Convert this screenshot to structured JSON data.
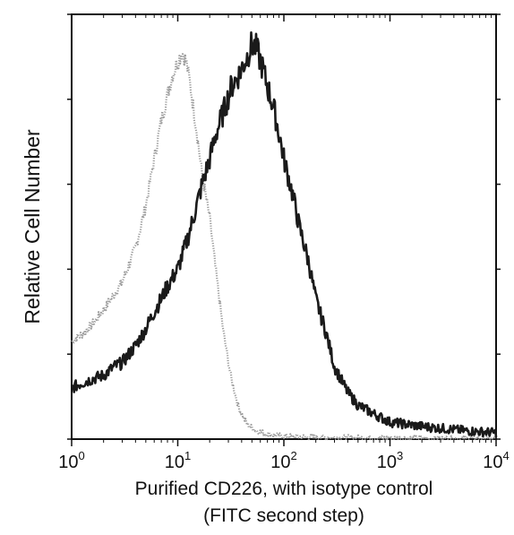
{
  "chart_data": {
    "type": "line",
    "title": "",
    "xlabel": "Purified CD226, with isotype control",
    "xlabel_line2": "(FITC second step)",
    "ylabel": "Relative Cell Number",
    "x_scale": "log",
    "xlim": [
      1,
      10000
    ],
    "ylim": [
      0,
      100
    ],
    "x_ticks": [
      {
        "value": 1,
        "base": "10",
        "exp": "0"
      },
      {
        "value": 10,
        "base": "10",
        "exp": "1"
      },
      {
        "value": 100,
        "base": "10",
        "exp": "2"
      },
      {
        "value": 1000,
        "base": "10",
        "exp": "3"
      },
      {
        "value": 10000,
        "base": "10",
        "exp": "4"
      }
    ],
    "y_ticks": [
      0,
      20,
      40,
      60,
      80,
      100
    ],
    "grid": false,
    "legend": "none",
    "series": [
      {
        "style": "dotted-gray",
        "color": "#9a9a9a",
        "x": [
          1,
          1.3,
          1.7,
          2.2,
          3,
          4,
          5,
          6,
          7,
          8,
          9,
          10,
          11,
          12,
          13,
          15,
          17,
          20,
          23,
          27,
          32,
          38,
          45,
          55,
          70,
          90,
          120,
          200,
          500,
          1000,
          3000,
          10000
        ],
        "y": [
          23,
          25,
          28,
          32,
          37,
          45,
          55,
          66,
          75,
          81,
          86,
          89,
          91,
          89,
          84,
          73,
          62,
          52,
          39,
          25,
          14,
          7,
          3.5,
          2,
          1.2,
          0.8,
          0.6,
          0.4,
          0.3,
          0.2,
          0.1,
          0
        ]
      },
      {
        "style": "solid-black",
        "color": "#1a1a1a",
        "x": [
          1,
          1.2,
          1.5,
          2,
          2.5,
          3,
          4,
          5,
          6,
          7,
          8,
          10,
          12,
          14,
          17,
          20,
          23,
          27,
          32,
          38,
          45,
          50,
          55,
          62,
          70,
          80,
          90,
          100,
          120,
          140,
          170,
          200,
          250,
          300,
          400,
          500,
          700,
          1000,
          2000,
          5000,
          10000
        ],
        "y": [
          12,
          13,
          14,
          15,
          17,
          18,
          22,
          26,
          30,
          33,
          36,
          40,
          46,
          52,
          60,
          66,
          72,
          77,
          83,
          86,
          90,
          93,
          92,
          88,
          83,
          78,
          72,
          66,
          58,
          50,
          42,
          33,
          25,
          17,
          11,
          8,
          6,
          4,
          3,
          2,
          1.5
        ]
      }
    ]
  }
}
